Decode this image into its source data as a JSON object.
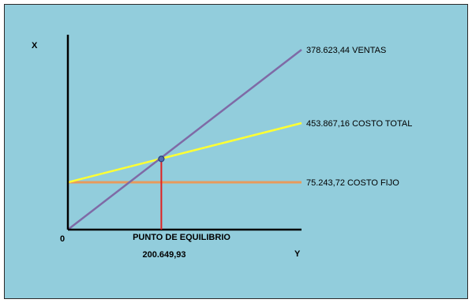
{
  "chart_data": {
    "type": "line",
    "background_color": "#92cddc",
    "xlabel": "Y",
    "ylabel": "X",
    "origin_label": "0",
    "grid": false,
    "legend": "none",
    "series": [
      {
        "name": "VENTAS",
        "value_label": "378.623,44",
        "color": "#7f6aa6",
        "points": [
          [
            0,
            0
          ],
          [
            1,
            1.0
          ]
        ]
      },
      {
        "name": "COSTO TOTAL",
        "value_label": "453.867,16",
        "color": "#ffff33",
        "points": [
          [
            0,
            0.263
          ],
          [
            1,
            0.592
          ]
        ]
      },
      {
        "name": "COSTO FIJO",
        "value_label": "75.243,72",
        "color": "#e89a5c",
        "points": [
          [
            0,
            0.263
          ],
          [
            1,
            0.263
          ]
        ]
      }
    ],
    "break_even": {
      "title": "PUNTO DE EQUILIBRIO",
      "value_label": "200.649,93",
      "x": 0.4,
      "y": 0.393,
      "point_color": "#4f6faf",
      "drop_line_color": "#e02020"
    }
  }
}
